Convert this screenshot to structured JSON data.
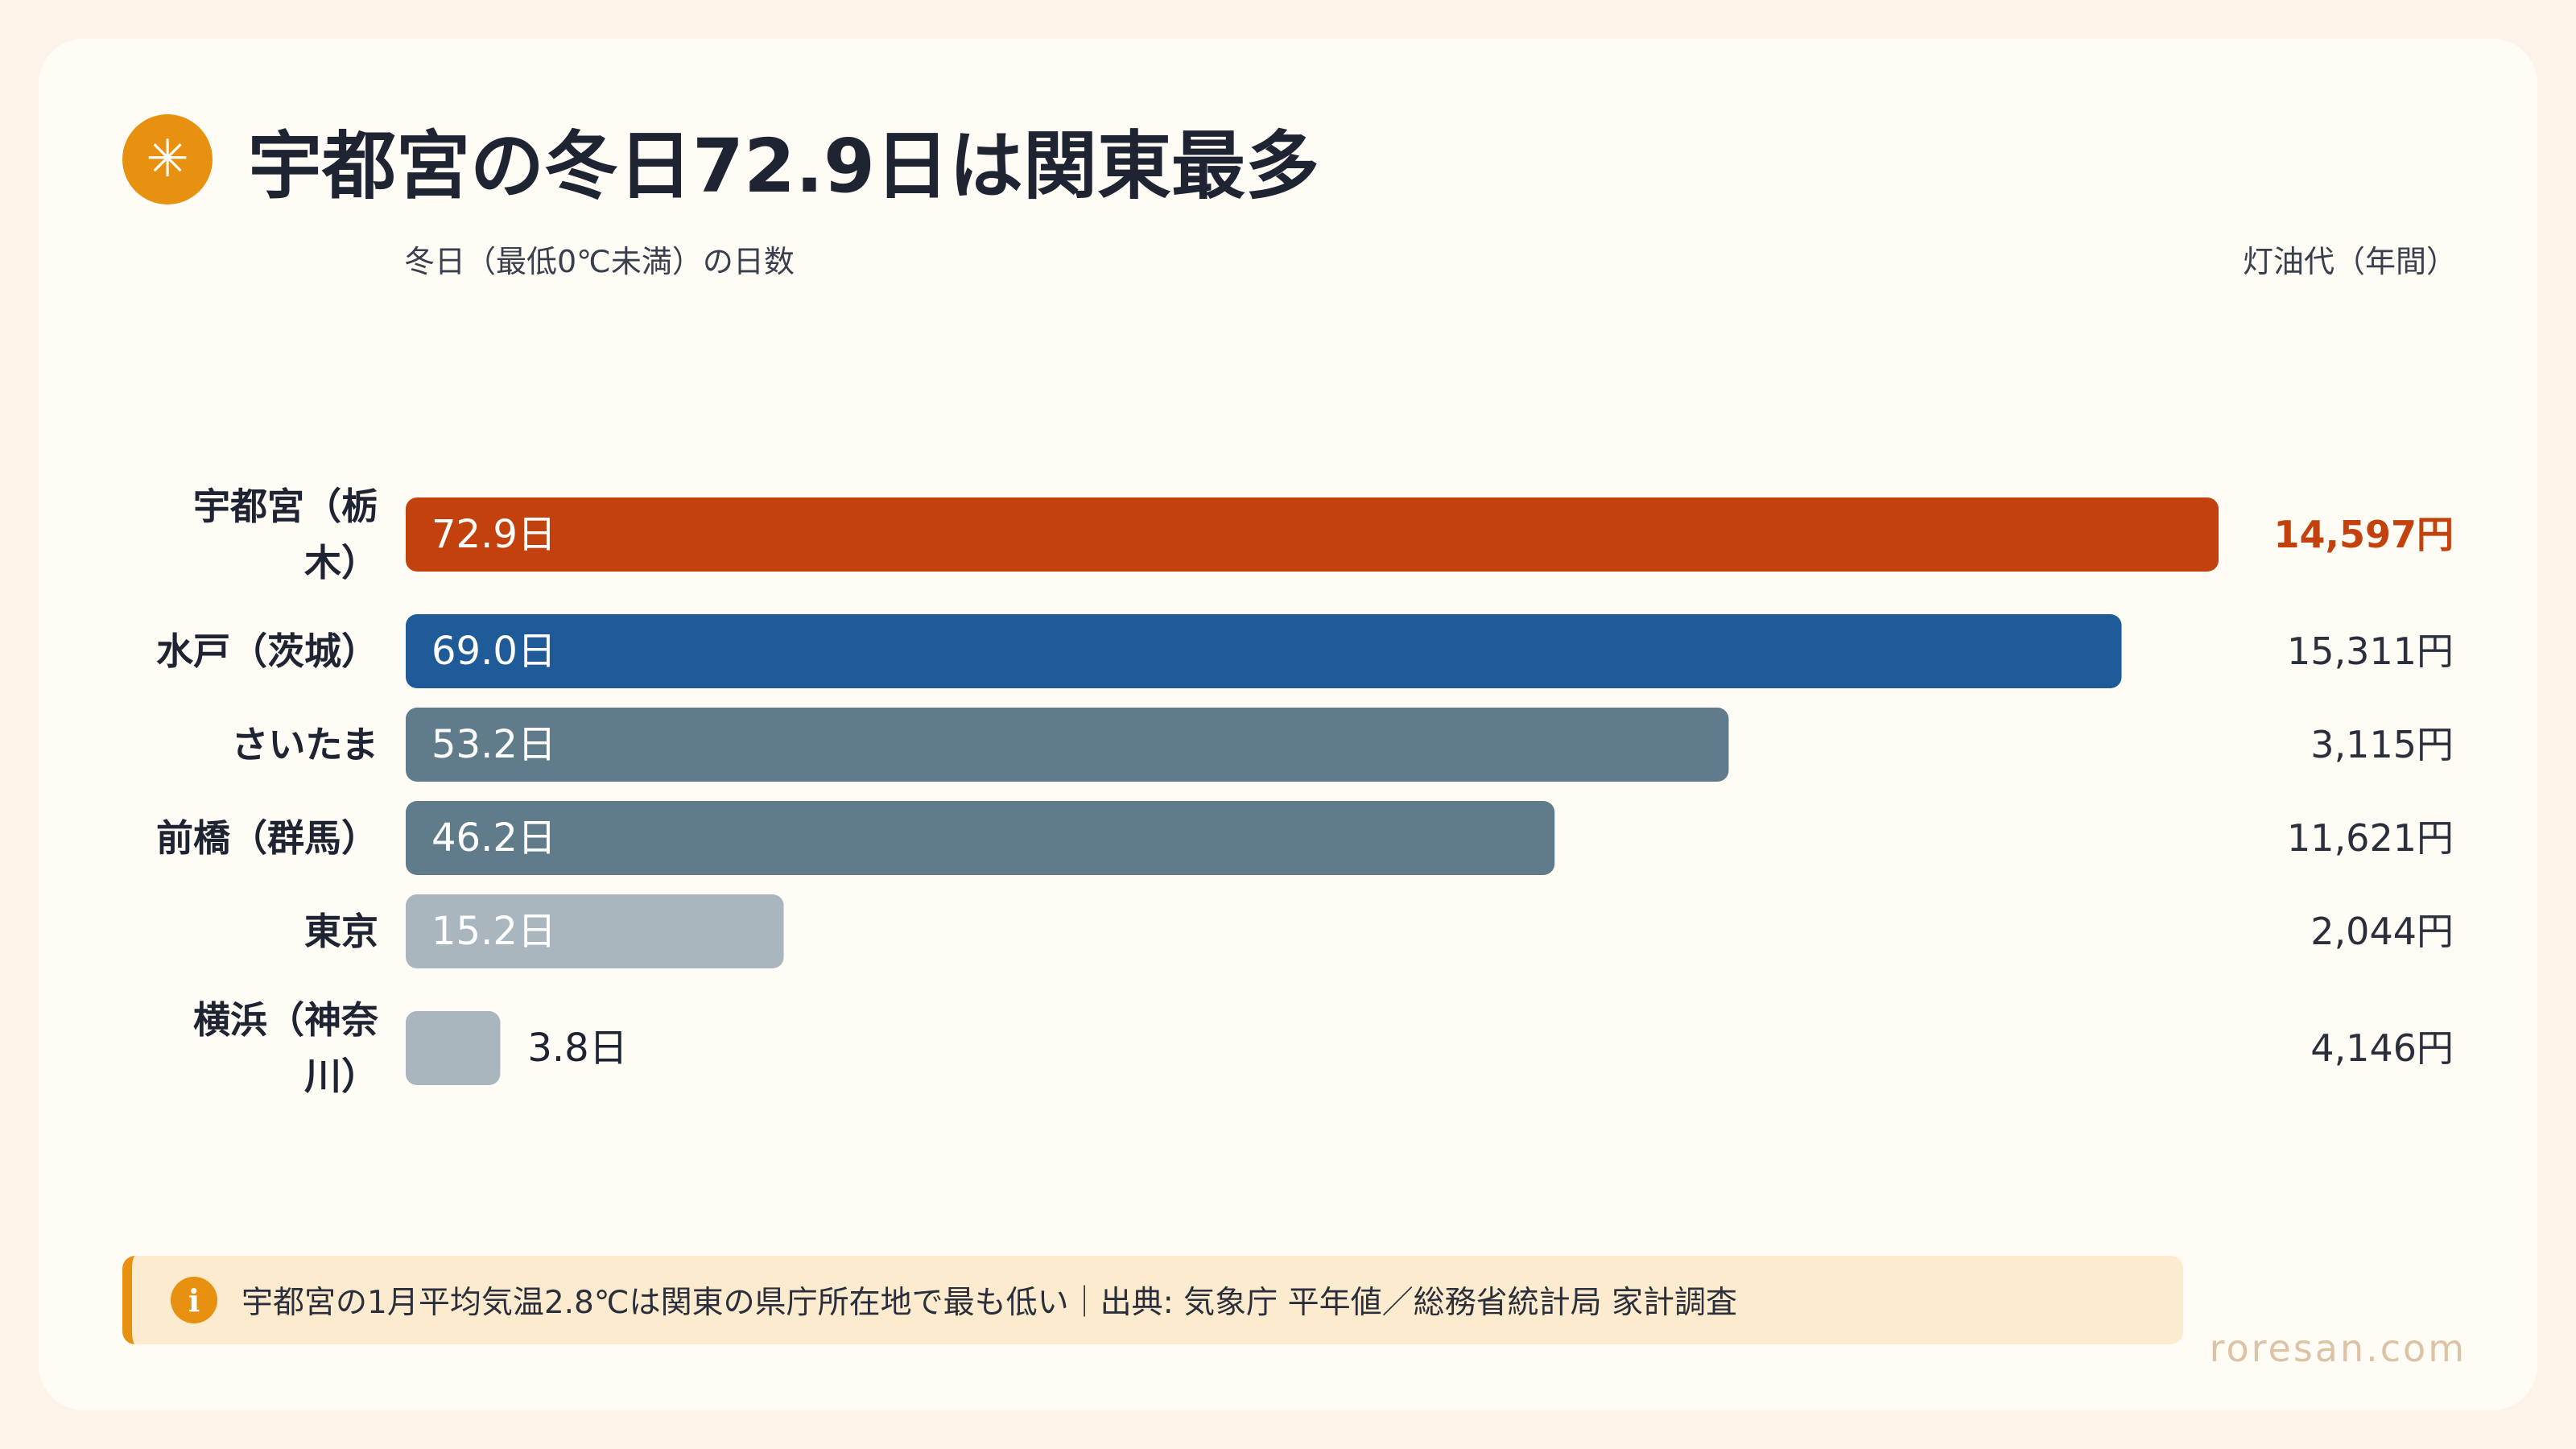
{
  "title": "宇都宮の冬日72.9日は関東最多",
  "title_icon": "asterisk-icon",
  "footnote": {
    "icon": "info-icon",
    "text": "宇都宮の1月平均気温2.8℃は関東の県庁所在地で最も低い｜出典: 気象庁 平年値／総務省統計局 家計調査"
  },
  "watermark": "roresan.com",
  "colors": {
    "highlight": "#c2410c",
    "blue": "#1e5b98",
    "slate": "#607b89",
    "light": "#a9b6bd",
    "accent": "#e8900f"
  },
  "chart_data": {
    "type": "bar",
    "orientation": "horizontal",
    "title": "宇都宮の冬日72.9日は関東最多",
    "xlabel": "冬日（最低0℃未満）の日数",
    "secondary_label": "灯油代（年間）",
    "categories": [
      [
        "宇都宮（栃",
        "木）"
      ],
      [
        "水戸（茨城）"
      ],
      [
        "さいたま"
      ],
      [
        "前橋（群馬）"
      ],
      [
        "東京"
      ],
      [
        "横浜（神奈",
        "川）"
      ]
    ],
    "values": [
      72.9,
      69.0,
      53.2,
      46.2,
      15.2,
      3.8
    ],
    "value_labels": [
      "72.9日",
      "69.0日",
      "53.2日",
      "46.2日",
      "15.2日",
      "3.8日"
    ],
    "secondary_values": [
      14597,
      15311,
      3115,
      11621,
      2044,
      4146
    ],
    "secondary_labels": [
      "14,597円",
      "15,311円",
      "3,115円",
      "11,621円",
      "2,044円",
      "4,146円"
    ],
    "bar_colors": [
      "#c2410c",
      "#1e5b98",
      "#607b89",
      "#607b89",
      "#a9b6bd",
      "#a9b6bd"
    ],
    "highlight_index": 0,
    "xlim": [
      0,
      72.9
    ],
    "grid": false,
    "legend": "none"
  }
}
